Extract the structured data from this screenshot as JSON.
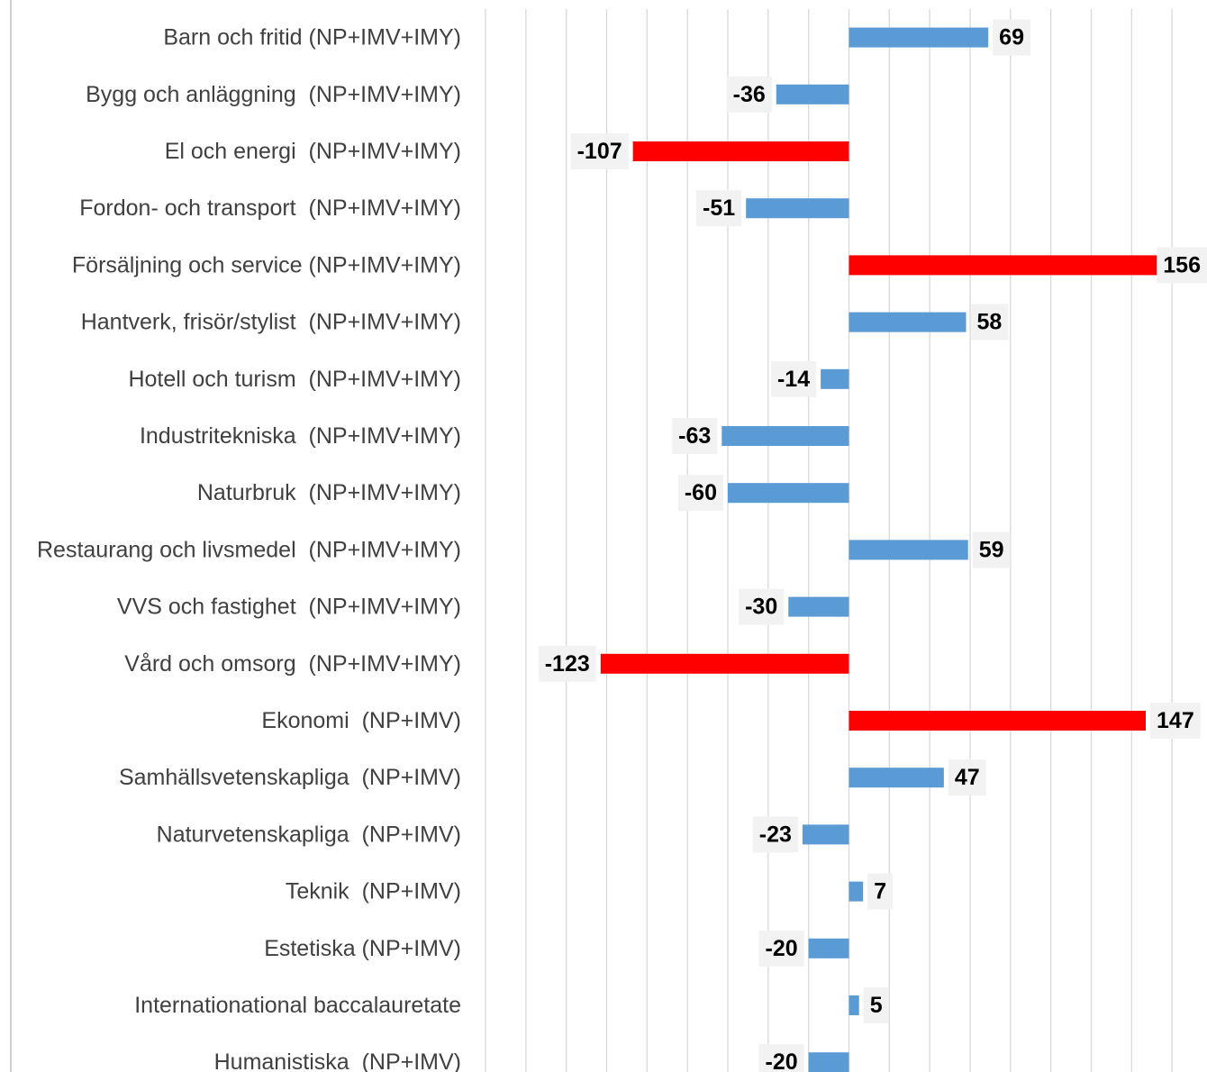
{
  "chart_data": {
    "type": "bar",
    "orientation": "horizontal",
    "categories": [
      "Barn och fritid (NP+IMV+IMY)",
      "Bygg och anläggning  (NP+IMV+IMY)",
      "El och energi  (NP+IMV+IMY)",
      "Fordon- och transport  (NP+IMV+IMY)",
      "Försäljning och service (NP+IMV+IMY)",
      "Hantverk, frisör/stylist  (NP+IMV+IMY)",
      "Hotell och turism  (NP+IMV+IMY)",
      "Industritekniska  (NP+IMV+IMY)",
      "Naturbruk  (NP+IMV+IMY)",
      "Restaurang och livsmedel  (NP+IMV+IMY)",
      "VVS och fastighet  (NP+IMV+IMY)",
      "Vård och omsorg  (NP+IMV+IMY)",
      "Ekonomi  (NP+IMV)",
      "Samhällsvetenskapliga  (NP+IMV)",
      "Naturvetenskapliga  (NP+IMV)",
      "Teknik  (NP+IMV)",
      "Estetiska (NP+IMV)",
      "Internationational baccalauretate",
      "Humanistiska  (NP+IMV)"
    ],
    "values": [
      69,
      -36,
      -107,
      -51,
      156,
      58,
      -14,
      -63,
      -60,
      59,
      -30,
      -123,
      147,
      47,
      -23,
      7,
      -20,
      5,
      -20
    ],
    "value_labels": [
      "69",
      "-36",
      "-107",
      "-51",
      "156",
      "58",
      "-14",
      "-63",
      "-60",
      "59",
      "-30",
      "-123",
      "147",
      "47",
      "-23",
      "7",
      "-20",
      "5",
      "-20"
    ],
    "highlighted": [
      false,
      false,
      true,
      false,
      true,
      false,
      false,
      false,
      false,
      false,
      false,
      true,
      true,
      false,
      false,
      false,
      false,
      false,
      false
    ],
    "xlim": [
      -180,
      180
    ],
    "grid_step": 20,
    "grid": true,
    "data_labels": true,
    "colors": {
      "bar": "#5b9bd5",
      "highlight": "#ff0000",
      "gridline": "#d9d9d9",
      "axis": "#bfbfbf",
      "label_bg": "#f2f2f2",
      "category_text": "#404040",
      "value_text": "#000000"
    }
  }
}
